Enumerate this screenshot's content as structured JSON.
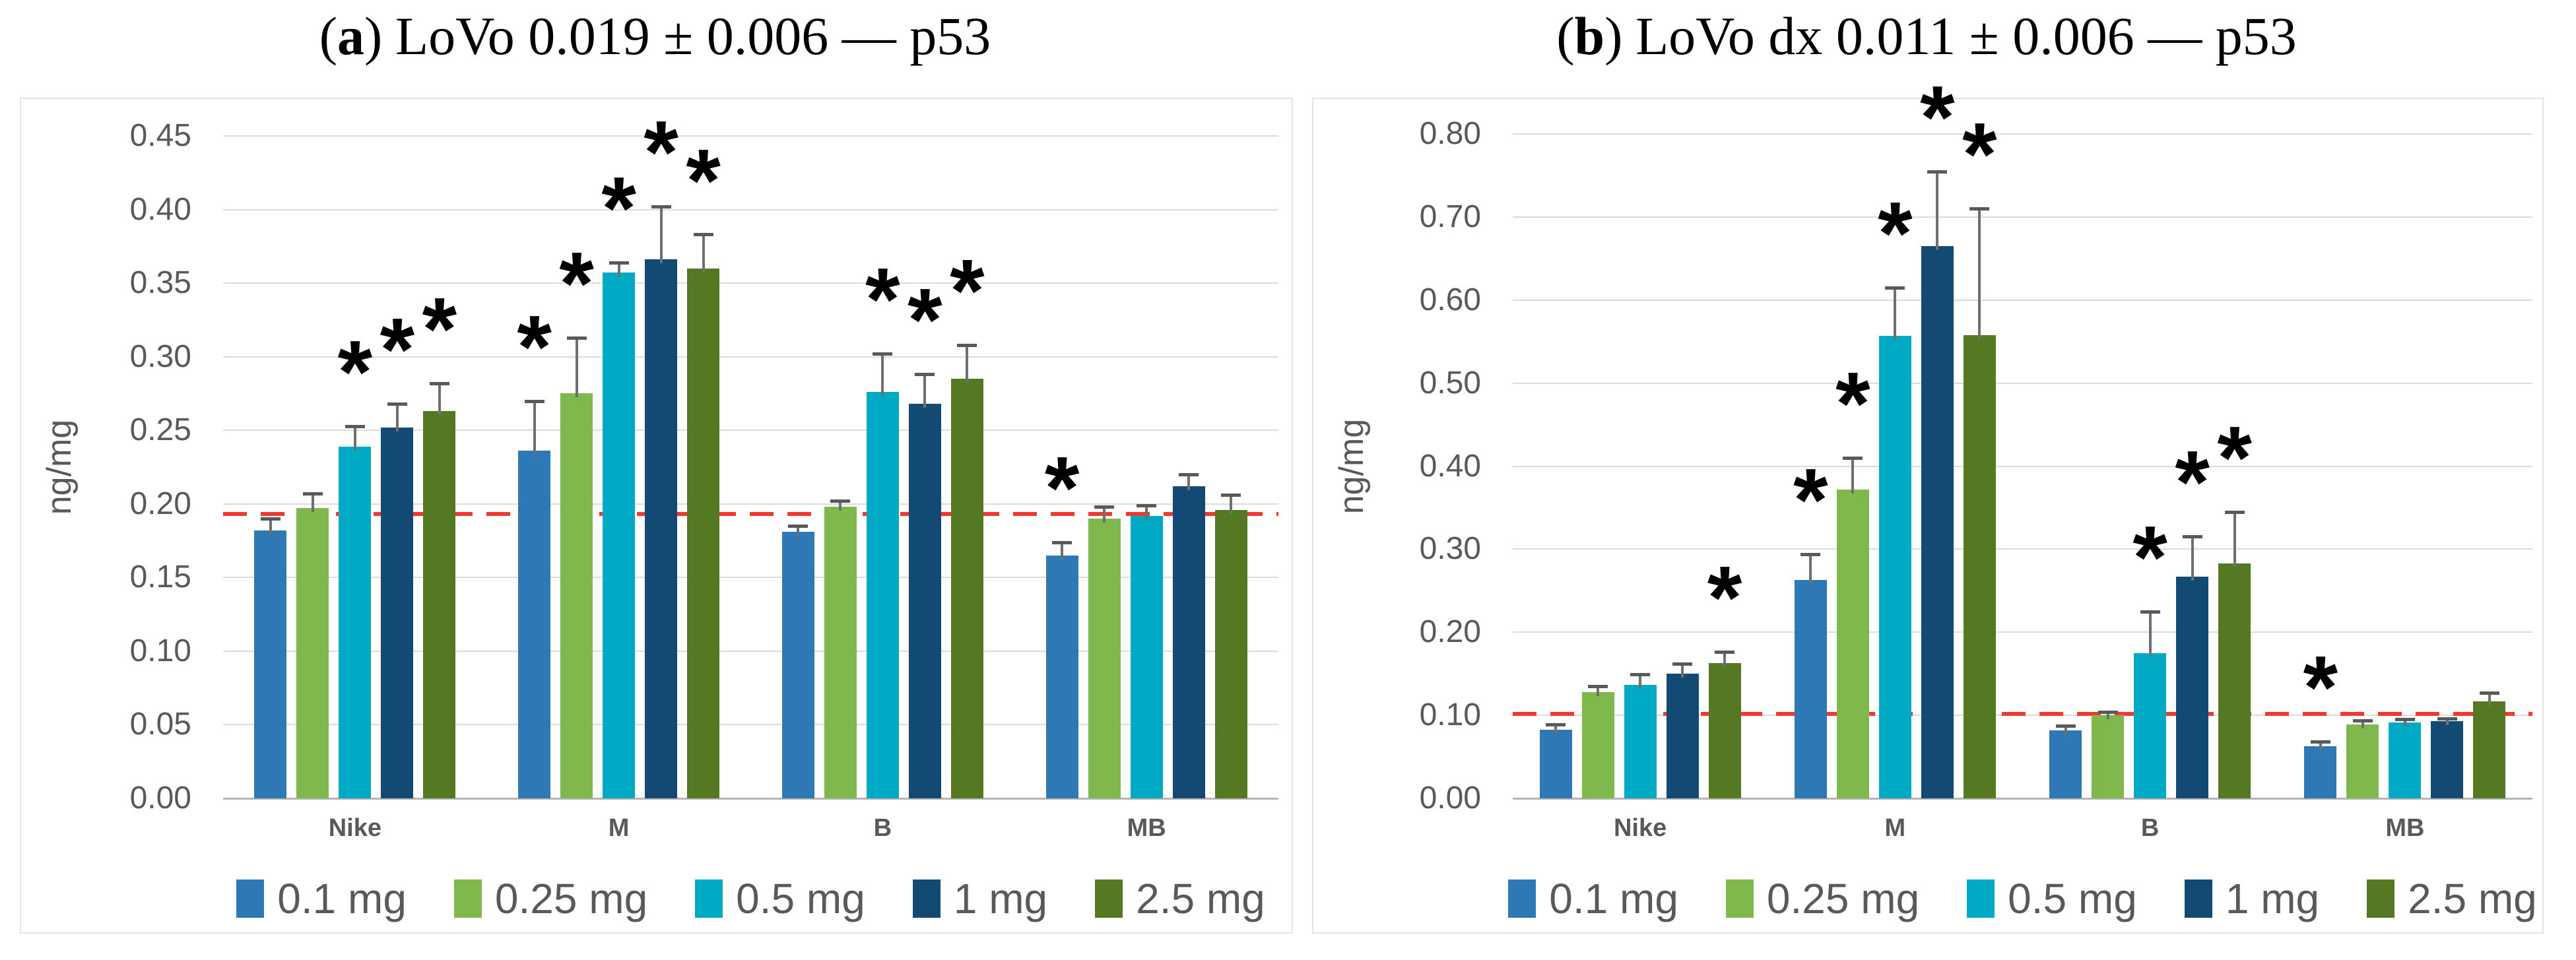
{
  "figure": {
    "background": "#FFFFFF",
    "panel_border_color": "#E4E4E4",
    "paren_open": "(",
    "paren_close": ")"
  },
  "chart_data": [
    {
      "type": "bar",
      "panel_label": "a",
      "title_text": "LoVo 0.019 ± 0.006 — p53",
      "ylabel": "ng/mg",
      "ylim": [
        0,
        0.45
      ],
      "yticks": [
        "0.45",
        "0.40",
        "0.35",
        "0.30",
        "0.25",
        "0.20",
        "0.15",
        "0.10",
        "0.05",
        "0.00"
      ],
      "categories": [
        "Nike",
        "M",
        "B",
        "MB"
      ],
      "grid": true,
      "legend_position": "bottom",
      "reference_line": {
        "value": 0.193,
        "color": "#EE3A30",
        "style": "dashed"
      },
      "series": [
        {
          "name": "0.1 mg",
          "color": "#2E79B5",
          "values": [
            0.182,
            0.236,
            0.181,
            0.165
          ],
          "errors": [
            0.008,
            0.034,
            0.004,
            0.009
          ],
          "significant": [
            false,
            true,
            false,
            true
          ]
        },
        {
          "name": "0.25 mg",
          "color": "#7FB84D",
          "values": [
            0.197,
            0.275,
            0.198,
            0.19
          ],
          "errors": [
            0.01,
            0.038,
            0.004,
            0.008
          ],
          "significant": [
            false,
            true,
            false,
            false
          ]
        },
        {
          "name": "0.5 mg",
          "color": "#00AAC4",
          "values": [
            0.239,
            0.357,
            0.276,
            0.192
          ],
          "errors": [
            0.014,
            0.007,
            0.026,
            0.007
          ],
          "significant": [
            true,
            true,
            true,
            false
          ]
        },
        {
          "name": "1 mg",
          "color": "#124A73",
          "values": [
            0.252,
            0.366,
            0.268,
            0.212
          ],
          "errors": [
            0.016,
            0.036,
            0.02,
            0.008
          ],
          "significant": [
            true,
            true,
            true,
            false
          ]
        },
        {
          "name": "2.5 mg",
          "color": "#557823",
          "values": [
            0.263,
            0.36,
            0.285,
            0.196
          ],
          "errors": [
            0.019,
            0.023,
            0.023,
            0.01
          ],
          "significant": [
            true,
            true,
            true,
            false
          ]
        }
      ]
    },
    {
      "type": "bar",
      "panel_label": "b",
      "title_text": "LoVo dx 0.011 ± 0.006 — p53",
      "ylabel": "ng/mg",
      "ylim": [
        0,
        0.8
      ],
      "yticks": [
        "0.80",
        "0.70",
        "0.60",
        "0.50",
        "0.40",
        "0.30",
        "0.20",
        "0.10",
        "0.00"
      ],
      "categories": [
        "Nike",
        "M",
        "B",
        "MB"
      ],
      "grid": true,
      "legend_position": "bottom",
      "reference_line": {
        "value": 0.102,
        "color": "#EE3A30",
        "style": "dashed"
      },
      "series": [
        {
          "name": "0.1 mg",
          "color": "#2E79B5",
          "values": [
            0.083,
            0.263,
            0.082,
            0.063
          ],
          "errors": [
            0.006,
            0.031,
            0.005,
            0.005
          ],
          "significant": [
            false,
            true,
            false,
            true
          ]
        },
        {
          "name": "0.25 mg",
          "color": "#7FB84D",
          "values": [
            0.128,
            0.372,
            0.1,
            0.089
          ],
          "errors": [
            0.007,
            0.038,
            0.004,
            0.005
          ],
          "significant": [
            false,
            true,
            false,
            false
          ]
        },
        {
          "name": "0.5 mg",
          "color": "#00AAC4",
          "values": [
            0.137,
            0.557,
            0.175,
            0.091
          ],
          "errors": [
            0.012,
            0.058,
            0.05,
            0.004
          ],
          "significant": [
            false,
            true,
            true,
            false
          ]
        },
        {
          "name": "1 mg",
          "color": "#124A73",
          "values": [
            0.15,
            0.665,
            0.267,
            0.093
          ],
          "errors": [
            0.012,
            0.09,
            0.048,
            0.003
          ],
          "significant": [
            false,
            true,
            true,
            false
          ]
        },
        {
          "name": "2.5 mg",
          "color": "#557823",
          "values": [
            0.163,
            0.558,
            0.283,
            0.117
          ],
          "errors": [
            0.013,
            0.152,
            0.062,
            0.01
          ],
          "significant": [
            true,
            true,
            true,
            false
          ]
        }
      ]
    }
  ]
}
